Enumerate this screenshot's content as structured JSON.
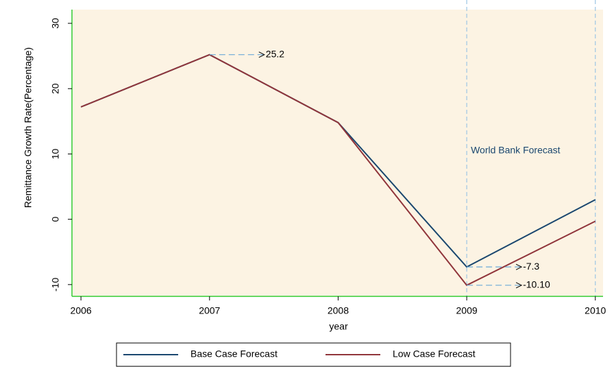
{
  "chart_data": {
    "type": "line",
    "x": [
      2006,
      2007,
      2008,
      2009,
      2010
    ],
    "series": [
      {
        "name": "Base Case Forecast",
        "color": "#1a476f",
        "values": [
          17.2,
          25.2,
          14.8,
          -7.3,
          3.0
        ]
      },
      {
        "name": "Low Case Forecast",
        "color": "#90353b",
        "values": [
          17.2,
          25.2,
          14.8,
          -10.1,
          -0.3
        ]
      }
    ],
    "xlim": [
      2005.93,
      2010.06
    ],
    "xticks": [
      2006,
      2007,
      2008,
      2009,
      2010
    ],
    "ylim": [
      -11.8,
      32.1
    ],
    "yticks": [
      -10,
      0,
      10,
      20,
      30
    ],
    "x_label": "year",
    "y_label": "Remittance Growth Rate(Percentage)",
    "vlines": [
      2009,
      2010
    ],
    "vline_label": "World Bank Forecast",
    "annotations": [
      {
        "label": "25.2",
        "x": 2007,
        "y": 25.2
      },
      {
        "label": "-7.3",
        "x": 2009,
        "y": -7.3
      },
      {
        "label": "-10.10",
        "x": 2009,
        "y": -10.1
      }
    ],
    "background": "#fcf3e3"
  }
}
